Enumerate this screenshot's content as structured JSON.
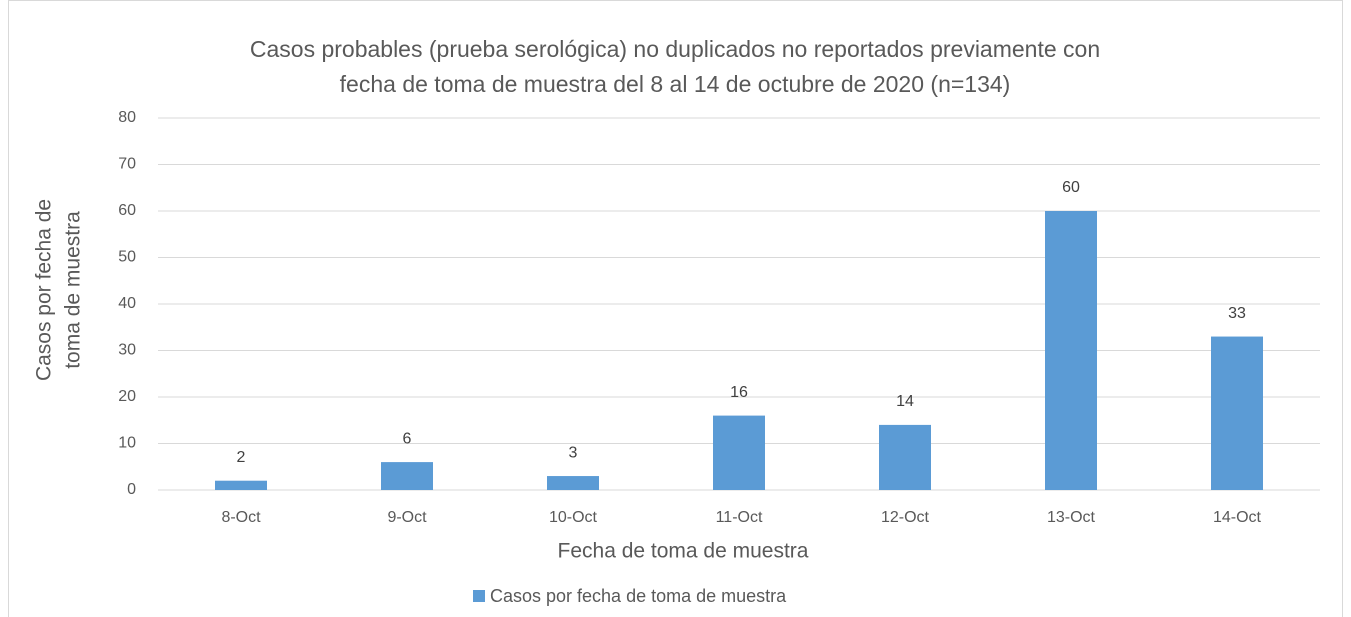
{
  "chart_data": {
    "type": "bar",
    "title": [
      "Casos probables (prueba serológica) no duplicados no reportados previamente con",
      "fecha de toma de muestra del 8 al 14 de octubre de 2020 (n=134)"
    ],
    "x_label": "Fecha de toma de muestra",
    "y_label": [
      "Casos por fecha de",
      "toma de muestra"
    ],
    "categories": [
      "8-Oct",
      "9-Oct",
      "10-Oct",
      "11-Oct",
      "12-Oct",
      "13-Oct",
      "14-Oct"
    ],
    "series": [
      {
        "name": "Casos por fecha de toma de muestra",
        "color": "#5b9bd5",
        "values": [
          2,
          6,
          3,
          16,
          14,
          60,
          33
        ]
      }
    ],
    "ylim": [
      0,
      80
    ],
    "yticks": [
      0,
      10,
      20,
      30,
      40,
      50,
      60,
      70,
      80
    ],
    "grid": true,
    "legend": "bottom"
  }
}
